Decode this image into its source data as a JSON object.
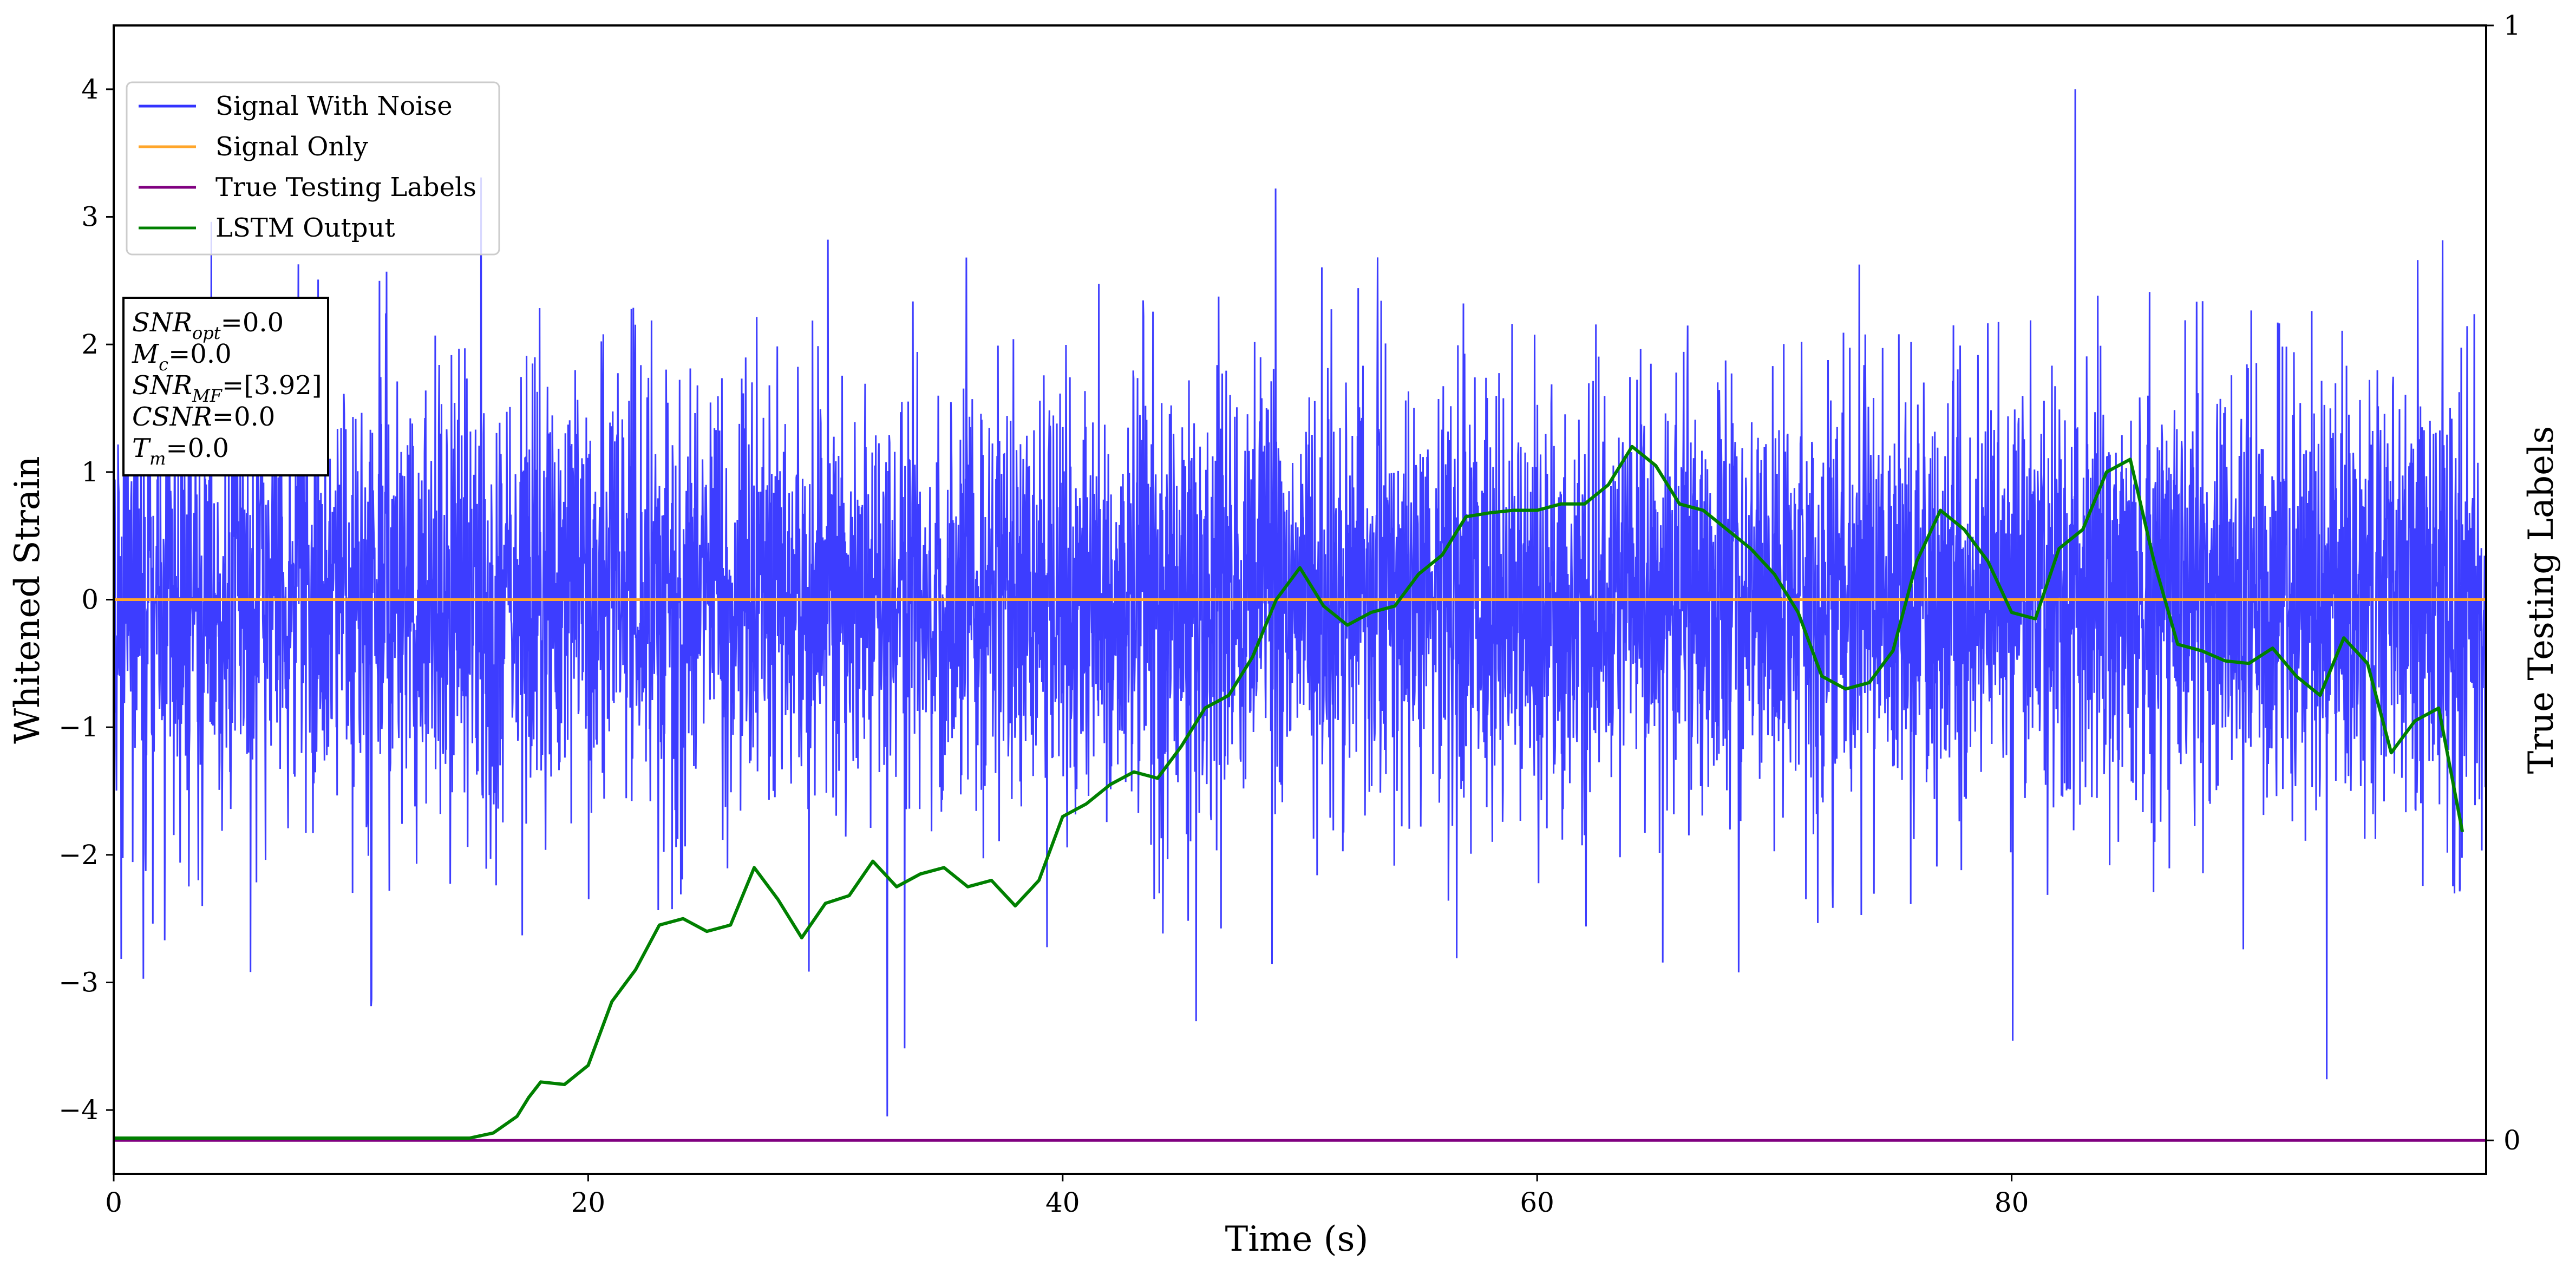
{
  "chart_data": {
    "type": "line",
    "xlabel": "Time (s)",
    "ylabel": "Whitened Strain",
    "ylabel_right": "True Testing Labels",
    "xlim": [
      0,
      100
    ],
    "ylim": [
      -4.5,
      4.5
    ],
    "ylim_right": [
      -0.03,
      1.0
    ],
    "x_ticks": [
      "0",
      "20",
      "40",
      "60",
      "80"
    ],
    "y_ticks": [
      "−4",
      "−3",
      "−2",
      "−1",
      "0",
      "1",
      "2",
      "3",
      "4"
    ],
    "y_ticks_right": [
      "0",
      "1"
    ],
    "grid": false,
    "legend_position": "upper-left",
    "series": [
      {
        "name": "Signal With Noise",
        "axis": "left",
        "color": "#3333ff",
        "description_only": "dense noise, amplitude roughly within ±2 with spikes to about ±4",
        "peak_max": 4.0,
        "peak_min": -4.05
      },
      {
        "name": "Signal Only",
        "axis": "left",
        "color": "#ffa62b",
        "x": [
          0,
          100
        ],
        "y": [
          0,
          0
        ]
      },
      {
        "name": "True Testing Labels",
        "axis": "right",
        "color": "#800080",
        "x": [
          0,
          100
        ],
        "y": [
          0,
          0
        ]
      },
      {
        "name": "LSTM Output",
        "axis": "left",
        "color": "#008000",
        "x": [
          0,
          15,
          16,
          17,
          17.5,
          18,
          19,
          20,
          21,
          22,
          23,
          24,
          25,
          26,
          27,
          28,
          29,
          30,
          31,
          32,
          33,
          34,
          35,
          36,
          37,
          38,
          39,
          40,
          41,
          42,
          43,
          44,
          45,
          46,
          47,
          48,
          49,
          50,
          51,
          52,
          53,
          54,
          55,
          56,
          57,
          58,
          59,
          60,
          61,
          62,
          63,
          64,
          65,
          66,
          67,
          68,
          69,
          70,
          71,
          72,
          73,
          74,
          75,
          76,
          77,
          78,
          79,
          80,
          81,
          82,
          83,
          84,
          85,
          86,
          87,
          88,
          89,
          90,
          91,
          92,
          93,
          94,
          95,
          96,
          97,
          98,
          99
        ],
        "y": [
          -4.22,
          -4.22,
          -4.18,
          -4.05,
          -3.9,
          -3.78,
          -3.8,
          -3.65,
          -3.15,
          -2.9,
          -2.55,
          -2.5,
          -2.6,
          -2.55,
          -2.1,
          -2.35,
          -2.65,
          -2.38,
          -2.32,
          -2.05,
          -2.25,
          -2.15,
          -2.1,
          -2.25,
          -2.2,
          -2.4,
          -2.2,
          -1.7,
          -1.6,
          -1.45,
          -1.35,
          -1.4,
          -1.15,
          -0.85,
          -0.75,
          -0.45,
          0.0,
          0.25,
          -0.05,
          -0.2,
          -0.1,
          -0.05,
          0.2,
          0.35,
          0.65,
          0.68,
          0.7,
          0.7,
          0.75,
          0.75,
          0.9,
          1.2,
          1.05,
          0.75,
          0.7,
          0.55,
          0.4,
          0.2,
          -0.1,
          -0.6,
          -0.7,
          -0.65,
          -0.4,
          0.3,
          0.7,
          0.55,
          0.3,
          -0.1,
          -0.15,
          0.4,
          0.55,
          1.0,
          1.1,
          0.3,
          -0.35,
          -0.4,
          -0.48,
          -0.5,
          -0.38,
          -0.6,
          -0.75,
          -0.3,
          -0.5,
          -1.2,
          -0.95,
          -0.85,
          -1.82
        ]
      }
    ],
    "annotation_lines": [
      {
        "sym": "SNR",
        "sub": "opt",
        "value": "=0.0"
      },
      {
        "sym": "M",
        "sub": "c",
        "value": "=0.0"
      },
      {
        "sym": "SNR",
        "sub": "MF",
        "value": "=[3.92]"
      },
      {
        "sym": "CSNR",
        "sub": "",
        "value": "=0.0"
      },
      {
        "sym": "T",
        "sub": "m",
        "value": "=0.0"
      }
    ]
  }
}
